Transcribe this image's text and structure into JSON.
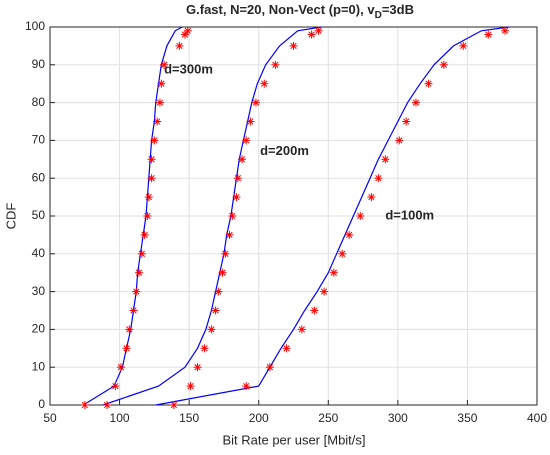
{
  "chart_data": {
    "type": "line",
    "title": [
      "G.fast, N=20, Non-Vect (p=0), v",
      "D",
      "=3dB"
    ],
    "xlabel": "Bit Rate per user [Mbit/s]",
    "ylabel": "CDF",
    "xlim": [
      50,
      400
    ],
    "ylim": [
      0,
      100
    ],
    "xticks": [
      50,
      100,
      150,
      200,
      250,
      300,
      350,
      400
    ],
    "yticks": [
      0,
      10,
      20,
      30,
      40,
      50,
      60,
      70,
      80,
      90,
      100
    ],
    "grid": true,
    "series": [
      {
        "name": "d=300m",
        "color": "#0000ff",
        "marker_color": "#ff0000",
        "label_x": 132,
        "label_y": 88.6,
        "line": {
          "x": [
            74,
            96,
            102,
            105,
            108,
            110,
            112,
            113,
            115,
            117,
            119,
            120,
            121,
            122,
            123,
            125,
            126,
            128,
            130,
            134,
            140,
            145
          ],
          "y": [
            0,
            5,
            10,
            15,
            20,
            25,
            30,
            35,
            40,
            45,
            50,
            55,
            60,
            65,
            70,
            75,
            80,
            85,
            90,
            95,
            99,
            100
          ]
        },
        "markers": {
          "x": [
            75,
            97,
            101,
            105,
            107,
            110,
            112,
            114,
            116,
            118,
            120,
            121,
            123,
            123,
            125,
            127,
            129,
            130,
            132,
            143,
            147,
            149
          ],
          "y": [
            0,
            5,
            10,
            15,
            20,
            25,
            30,
            35,
            40,
            45,
            50,
            55,
            60,
            65,
            70,
            75,
            80,
            85,
            90,
            95,
            98,
            99
          ]
        }
      },
      {
        "name": "d=200m",
        "color": "#0000ff",
        "marker_color": "#ff0000",
        "label_x": 201,
        "label_y": 67,
        "line": {
          "x": [
            88,
            128,
            147,
            156,
            162,
            166,
            169,
            172,
            175,
            177,
            180,
            182,
            184,
            186,
            189,
            192,
            195,
            199,
            205,
            215,
            228,
            245
          ],
          "y": [
            0,
            5,
            10,
            15,
            20,
            25,
            30,
            35,
            40,
            45,
            50,
            55,
            60,
            65,
            70,
            75,
            80,
            85,
            90,
            95,
            99,
            100
          ]
        },
        "markers": {
          "x": [
            91,
            151,
            156,
            161,
            166,
            169,
            171,
            174,
            176,
            179,
            181,
            184,
            185,
            188,
            191,
            194,
            198,
            204,
            212,
            225,
            238,
            243
          ],
          "y": [
            0,
            5,
            10,
            15,
            20,
            25,
            30,
            35,
            40,
            45,
            50,
            55,
            60,
            65,
            70,
            75,
            80,
            85,
            90,
            95,
            98,
            99
          ]
        }
      },
      {
        "name": "d=100m",
        "color": "#0000ff",
        "marker_color": "#ff0000",
        "label_x": 291,
        "label_y": 50,
        "line": {
          "x": [
            126,
            200,
            208,
            216,
            225,
            233,
            242,
            250,
            256,
            262,
            268,
            274,
            280,
            286,
            293,
            300,
            307,
            316,
            326,
            340,
            360,
            380
          ],
          "y": [
            0,
            5,
            10,
            15,
            20,
            25,
            30,
            35,
            40,
            45,
            50,
            55,
            60,
            65,
            70,
            75,
            80,
            85,
            90,
            95,
            99,
            100
          ]
        },
        "markers": {
          "x": [
            139,
            191,
            208,
            220,
            231,
            240,
            247,
            254,
            260,
            265,
            273,
            281,
            286,
            291,
            301,
            306,
            313,
            322,
            333,
            347,
            365,
            377
          ],
          "y": [
            0,
            5,
            10,
            15,
            20,
            25,
            30,
            35,
            40,
            45,
            50,
            55,
            60,
            65,
            70,
            75,
            80,
            85,
            90,
            95,
            98,
            99
          ]
        }
      }
    ]
  }
}
